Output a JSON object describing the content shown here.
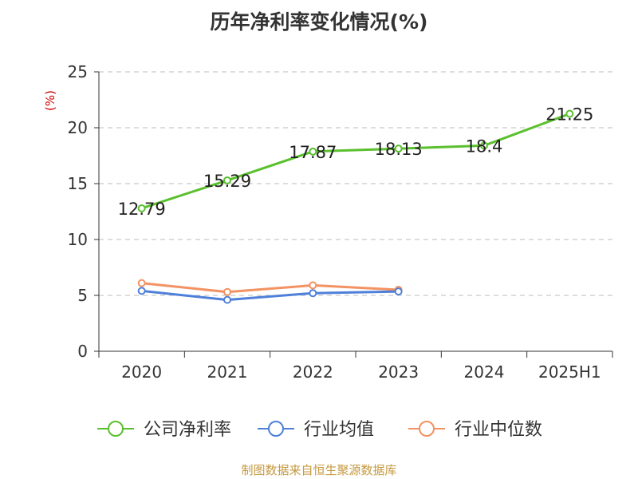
{
  "chart_data": {
    "type": "line",
    "title": "历年净利率变化情况(%)",
    "ylabel": "(%)",
    "categories": [
      "2020",
      "2021",
      "2022",
      "2023",
      "2024",
      "2025H1"
    ],
    "ylim": [
      0,
      25
    ],
    "yticks": [
      "0",
      "5",
      "10",
      "15",
      "20",
      "25"
    ],
    "grid": true,
    "legend_position": "bottom",
    "series": [
      {
        "name": "公司净利率",
        "color": "#5ac02e",
        "values": [
          12.79,
          15.29,
          17.87,
          18.13,
          18.4,
          21.25
        ],
        "labels": [
          "12.79",
          "15.29",
          "17.87",
          "18.13",
          "18.4",
          "21.25"
        ]
      },
      {
        "name": "行业均值",
        "color": "#4f80d9",
        "values": [
          5.4,
          4.6,
          5.2,
          5.35,
          null,
          null
        ]
      },
      {
        "name": "行业中位数",
        "color": "#f39262",
        "values": [
          6.1,
          5.3,
          5.9,
          5.5,
          null,
          null
        ]
      }
    ]
  },
  "source": "制图数据来自恒生聚源数据库"
}
